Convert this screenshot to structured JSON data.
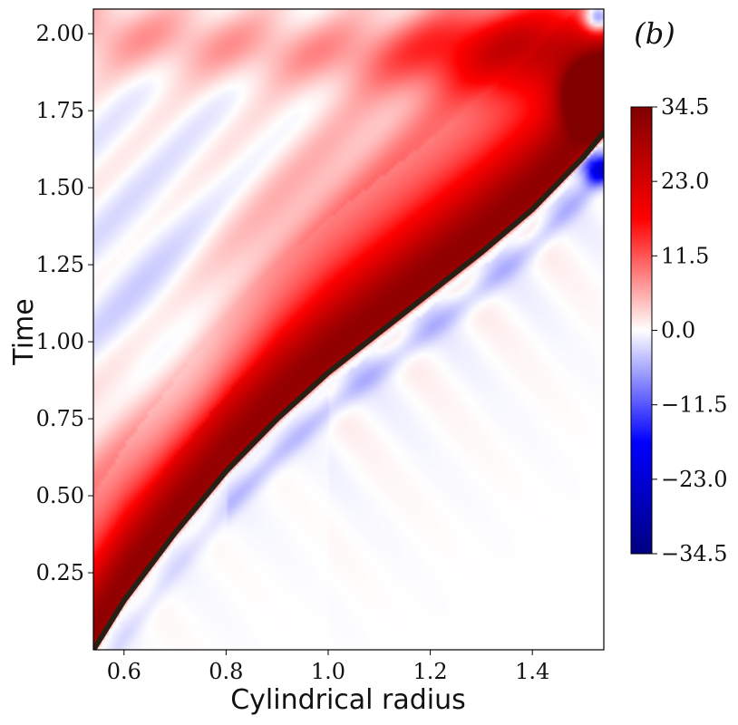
{
  "panel_label": "(b)",
  "chart_data": {
    "type": "heatmap",
    "title": "",
    "xlabel": "Cylindrical radius",
    "ylabel": "Time",
    "xlim": [
      0.54,
      1.54
    ],
    "ylim": [
      0.0,
      2.08
    ],
    "x_ticks": [
      0.6,
      0.8,
      1.0,
      1.2,
      1.4
    ],
    "x_tick_labels": [
      "0.6",
      "0.8",
      "1.0",
      "1.2",
      "1.4"
    ],
    "y_ticks": [
      0.25,
      0.5,
      0.75,
      1.0,
      1.25,
      1.5,
      1.75,
      2.0
    ],
    "y_tick_labels": [
      "0.25",
      "0.50",
      "0.75",
      "1.00",
      "1.25",
      "1.50",
      "1.75",
      "2.00"
    ],
    "grid": false,
    "colormap": "seismic",
    "colorbar": {
      "min": -34.5,
      "max": 34.5,
      "ticks": [
        34.5,
        23.0,
        11.5,
        0.0,
        -11.5,
        -23.0,
        -34.5
      ],
      "tick_labels": [
        "34.5",
        "23.0",
        "11.5",
        "0.0",
        "−11.5",
        "−23.0",
        "−34.5"
      ],
      "colors": [
        "#000080",
        "#0000ff",
        "#ffffff",
        "#ff0000",
        "#800000"
      ]
    },
    "front_curve": {
      "color": "#2a1f14",
      "x": [
        0.54,
        0.6,
        0.7,
        0.8,
        0.9,
        1.0,
        1.1,
        1.2,
        1.3,
        1.4,
        1.5,
        1.54
      ],
      "y": [
        0.0,
        0.16,
        0.38,
        0.58,
        0.75,
        0.9,
        1.03,
        1.16,
        1.29,
        1.43,
        1.6,
        1.68
      ]
    },
    "features": {
      "main_band": {
        "lead_offset": 0.05,
        "width": 0.3,
        "amplitude": 30
      },
      "negative_region": {
        "center": [
          0.72,
          0.92
        ],
        "amplitude": -5
      },
      "hot_spot": {
        "center": [
          1.52,
          1.8
        ],
        "amplitude": 34.5
      },
      "cold_spots": [
        {
          "center": [
            1.53,
            2.05
          ],
          "amplitude": -24
        },
        {
          "center": [
            1.53,
            1.56
          ],
          "amplitude": -22
        }
      ]
    }
  }
}
